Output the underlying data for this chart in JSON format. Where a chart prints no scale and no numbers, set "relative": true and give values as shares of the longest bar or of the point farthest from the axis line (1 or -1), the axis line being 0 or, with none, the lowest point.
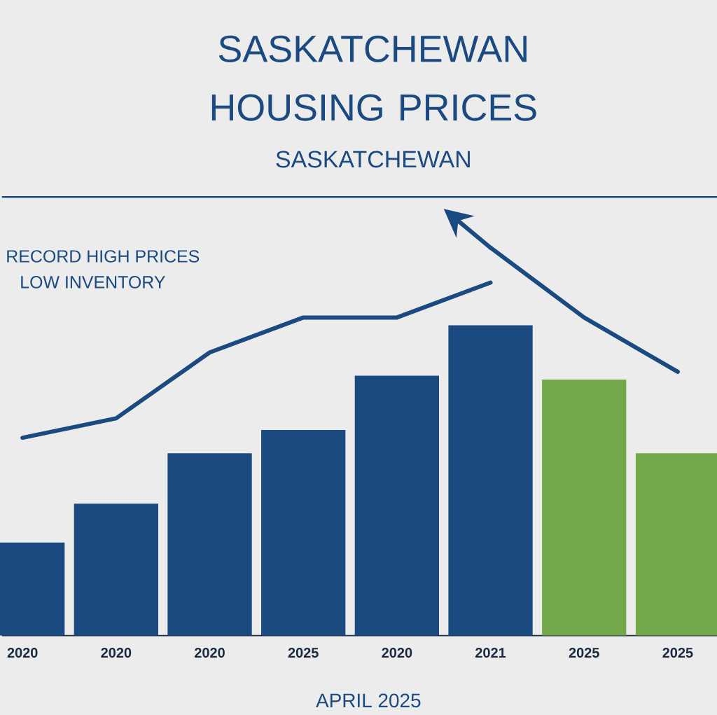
{
  "chart_data": {
    "type": "bar",
    "title": "SASKATCHEWAN HOUSING PRICES",
    "subtitle": "SASKATCHEWAN",
    "relative": true,
    "categories": [
      "2020",
      "2020",
      "2020",
      "2025",
      "2020",
      "2021",
      "2025",
      "2025"
    ],
    "series": [
      {
        "colors": [
          "#1b4a80",
          "#1b4a80",
          "#1b4a80",
          "#1b4a80",
          "#1b4a80",
          "#1b4a80",
          "#72a84a",
          "#72a84a"
        ],
        "values": [
          0.24,
          0.34,
          0.47,
          0.53,
          0.67,
          0.8,
          0.66,
          0.47
        ]
      },
      {
        "type": "line",
        "color": "#1b4a80",
        "values": [
          0.51,
          0.56,
          0.73,
          0.82,
          0.82,
          0.91,
          null,
          null
        ]
      },
      {
        "type": "line",
        "color": "#1b4a80",
        "values": [
          null,
          null,
          null,
          null,
          null,
          1,
          0.82,
          0.68
        ]
      }
    ],
    "annotations": [
      "RECORD HIGH PRICES",
      "LOW INVENTORY",
      "APRIL 2025"
    ]
  }
}
